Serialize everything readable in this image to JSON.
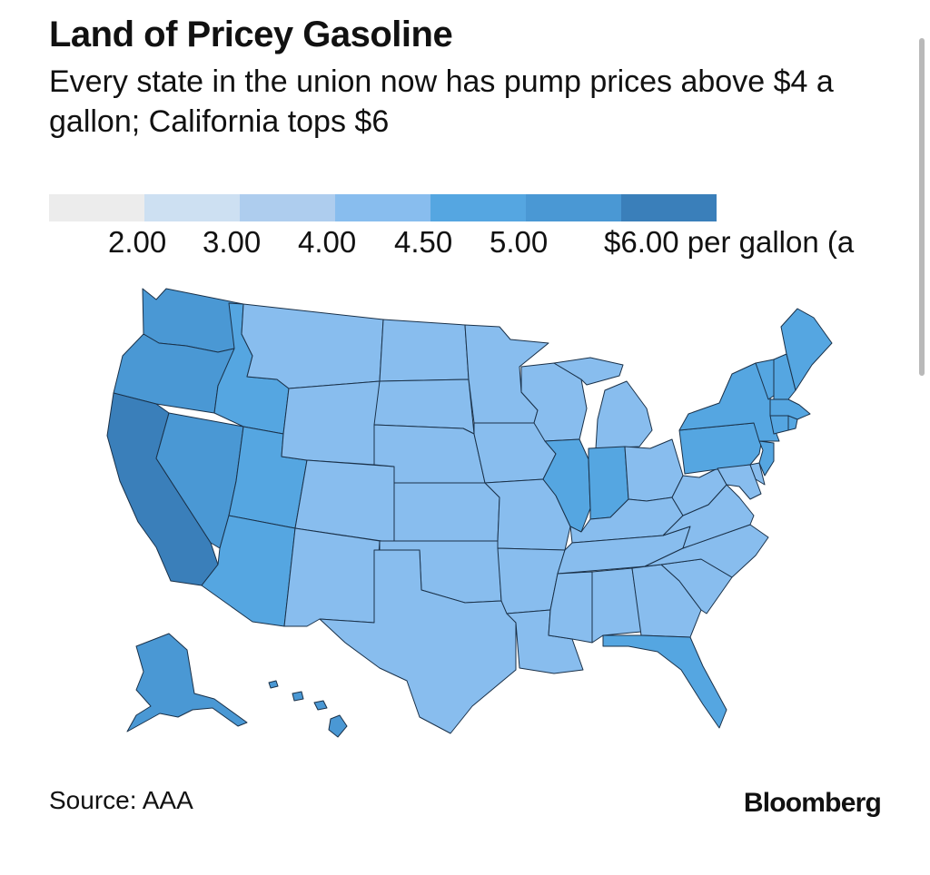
{
  "header": {
    "title": "Land of Pricey Gasoline",
    "subtitle": "Every state in the union now has pump prices above $4 a gallon; California tops $6"
  },
  "legend": {
    "colors": [
      "#ececec",
      "#cde0f2",
      "#aecdee",
      "#88bdee",
      "#55a6e1",
      "#4a98d4",
      "#3a7fba"
    ],
    "labels": [
      "2.00",
      "3.00",
      "4.00",
      "4.50",
      "5.00",
      "$6.00 per gallon (a"
    ]
  },
  "map_data": {
    "regions": [
      {
        "name": "Washington",
        "tier": 5
      },
      {
        "name": "Oregon",
        "tier": 5
      },
      {
        "name": "California",
        "tier": 6
      },
      {
        "name": "Nevada",
        "tier": 5
      },
      {
        "name": "Idaho",
        "tier": 4
      },
      {
        "name": "Utah",
        "tier": 4
      },
      {
        "name": "Arizona",
        "tier": 4
      },
      {
        "name": "Montana",
        "tier": 3
      },
      {
        "name": "Wyoming",
        "tier": 3
      },
      {
        "name": "Colorado",
        "tier": 3
      },
      {
        "name": "New Mexico",
        "tier": 3
      },
      {
        "name": "North Dakota",
        "tier": 3
      },
      {
        "name": "South Dakota",
        "tier": 3
      },
      {
        "name": "Nebraska",
        "tier": 3
      },
      {
        "name": "Kansas",
        "tier": 3
      },
      {
        "name": "Oklahoma",
        "tier": 3
      },
      {
        "name": "Texas",
        "tier": 3
      },
      {
        "name": "Minnesota",
        "tier": 3
      },
      {
        "name": "Iowa",
        "tier": 3
      },
      {
        "name": "Missouri",
        "tier": 3
      },
      {
        "name": "Arkansas",
        "tier": 3
      },
      {
        "name": "Louisiana",
        "tier": 3
      },
      {
        "name": "Wisconsin",
        "tier": 3
      },
      {
        "name": "Illinois",
        "tier": 4
      },
      {
        "name": "Michigan",
        "tier": 3
      },
      {
        "name": "Indiana",
        "tier": 4
      },
      {
        "name": "Ohio",
        "tier": 3
      },
      {
        "name": "Kentucky",
        "tier": 3
      },
      {
        "name": "Tennessee",
        "tier": 3
      },
      {
        "name": "Mississippi",
        "tier": 3
      },
      {
        "name": "Alabama",
        "tier": 3
      },
      {
        "name": "Georgia",
        "tier": 3
      },
      {
        "name": "Florida",
        "tier": 4
      },
      {
        "name": "South Carolina",
        "tier": 3
      },
      {
        "name": "North Carolina",
        "tier": 3
      },
      {
        "name": "Virginia",
        "tier": 3
      },
      {
        "name": "West Virginia",
        "tier": 3
      },
      {
        "name": "Pennsylvania",
        "tier": 4
      },
      {
        "name": "New York",
        "tier": 4
      },
      {
        "name": "Vermont",
        "tier": 4
      },
      {
        "name": "New Hampshire",
        "tier": 4
      },
      {
        "name": "Maine",
        "tier": 4
      },
      {
        "name": "Massachusetts",
        "tier": 4
      },
      {
        "name": "Connecticut",
        "tier": 4
      },
      {
        "name": "Rhode Island",
        "tier": 4
      },
      {
        "name": "New Jersey",
        "tier": 4
      },
      {
        "name": "Delaware",
        "tier": 3
      },
      {
        "name": "Maryland",
        "tier": 3
      },
      {
        "name": "Alaska",
        "tier": 5
      },
      {
        "name": "Hawaii",
        "tier": 5
      }
    ]
  },
  "footer": {
    "source": "Source: AAA",
    "brand": "Bloomberg"
  }
}
